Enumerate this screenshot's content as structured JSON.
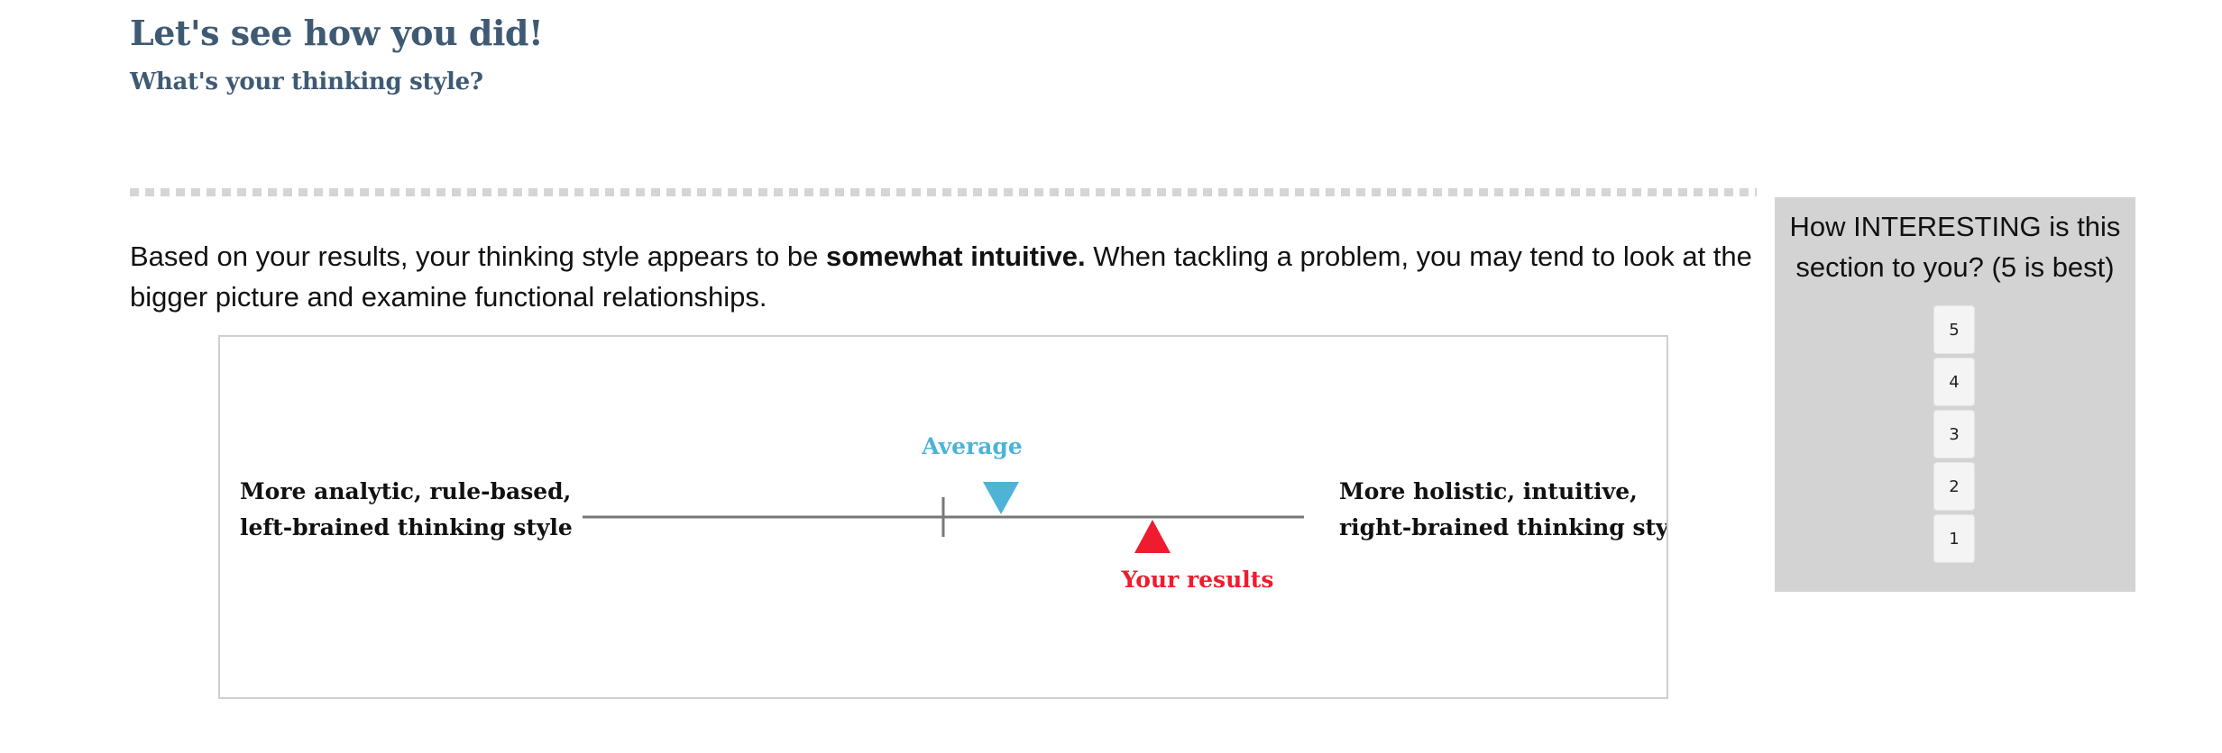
{
  "header": {
    "title": "Let's see how you did!",
    "subtitle": "What's your thinking style?"
  },
  "result": {
    "text_before": "Based on your results, your thinking style appears to be ",
    "emphasis": "somewhat intuitive.",
    "text_after": " When tackling a problem, you may tend to look at the bigger picture and examine functional relationships."
  },
  "scale_graphic": {
    "left_label_line1": "More analytic, rule-based,",
    "left_label_line2": "left-brained thinking style",
    "right_label_line1": "More holistic, intuitive,",
    "right_label_line2": "right-brained thinking style",
    "average_label": "Average",
    "your_results_label": "Your results",
    "average_position_fraction": 0.58,
    "your_results_position_fraction": 0.79,
    "center_tick_fraction": 0.5,
    "colors": {
      "average": "#4fb3d8",
      "your_results": "#ee1c2e",
      "line": "#777777"
    }
  },
  "rating": {
    "question": "How INTERESTING is this section to you? (5 is best)",
    "options": [
      "5",
      "4",
      "3",
      "2",
      "1"
    ]
  }
}
